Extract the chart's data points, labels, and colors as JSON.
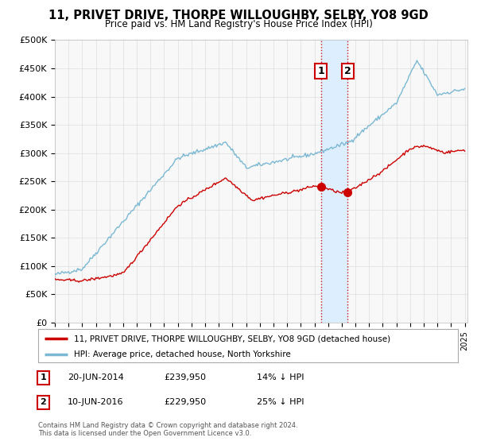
{
  "title": "11, PRIVET DRIVE, THORPE WILLOUGHBY, SELBY, YO8 9GD",
  "subtitle": "Price paid vs. HM Land Registry's House Price Index (HPI)",
  "ylim": [
    0,
    500000
  ],
  "yticks": [
    0,
    50000,
    100000,
    150000,
    200000,
    250000,
    300000,
    350000,
    400000,
    450000,
    500000
  ],
  "ytick_labels": [
    "£0",
    "£50K",
    "£100K",
    "£150K",
    "£200K",
    "£250K",
    "£300K",
    "£350K",
    "£400K",
    "£450K",
    "£500K"
  ],
  "hpi_color": "#7bb8d4",
  "price_color": "#cc0000",
  "marker_color": "#cc0000",
  "vline_color": "#cc0000",
  "highlight_color": "#ddeeff",
  "transaction1": {
    "date_num": 2014.47,
    "price": 239950,
    "label": "1"
  },
  "transaction2": {
    "date_num": 2016.44,
    "price": 229950,
    "label": "2"
  },
  "legend1_text": "11, PRIVET DRIVE, THORPE WILLOUGHBY, SELBY, YO8 9GD (detached house)",
  "legend2_text": "HPI: Average price, detached house, North Yorkshire",
  "footnote": "Contains HM Land Registry data © Crown copyright and database right 2024.\nThis data is licensed under the Open Government Licence v3.0.",
  "table_rows": [
    {
      "num": "1",
      "date": "20-JUN-2014",
      "price": "£239,950",
      "pct": "14% ↓ HPI"
    },
    {
      "num": "2",
      "date": "10-JUN-2016",
      "price": "£229,950",
      "pct": "25% ↓ HPI"
    }
  ]
}
